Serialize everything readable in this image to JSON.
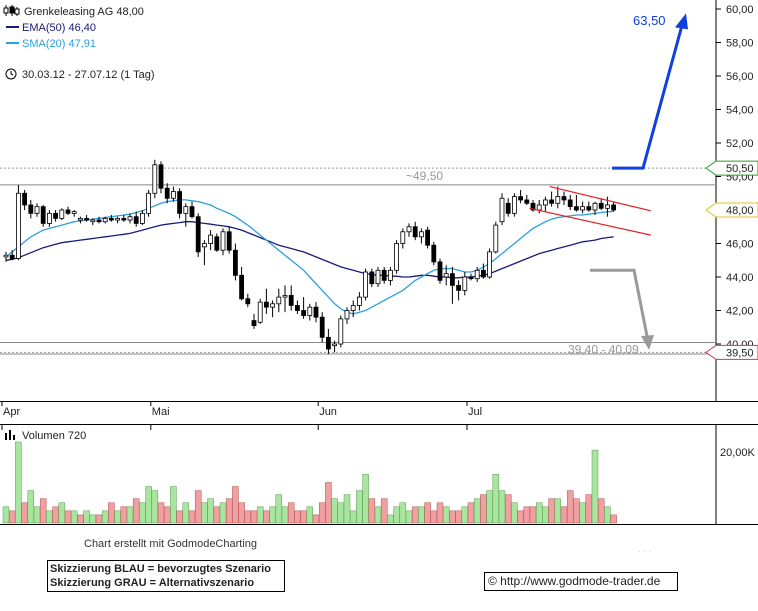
{
  "header": {
    "instrument": "Grenkeleasing AG 48,00",
    "ema_label": "EMA(50) 46,40",
    "sma_label": "SMA(20) 47,91",
    "period": "30.03.12 - 27.07.12 (1 Tag)"
  },
  "colors": {
    "candle_up": "#ffffff",
    "candle_down": "#000000",
    "ema": "#1a1a7a",
    "sma": "#2a9fe0",
    "channel": "#e02020",
    "scenario_blue": "#1040e0",
    "scenario_gray": "#9a9a9a",
    "volume_up": "#a8e6a0",
    "volume_down": "#f0a0a0"
  },
  "chart_data": [
    {
      "type": "candlestick",
      "yaxis": {
        "min": 39.0,
        "max": 60.5,
        "ticks": [
          "60,00",
          "58,00",
          "56,00",
          "54,00",
          "52,00",
          "50,00",
          "48,00",
          "46,00",
          "44,00",
          "42,00",
          "40,00"
        ]
      },
      "xaxis": {
        "months": [
          "Apr",
          "Mai",
          "Jun",
          "Jul"
        ]
      },
      "candles": [
        [
          45.2,
          45.5,
          44.9,
          45.3
        ],
        [
          45.3,
          45.6,
          45.0,
          45.1
        ],
        [
          45.1,
          49.5,
          45.0,
          49.0
        ],
        [
          49.0,
          49.2,
          48.0,
          48.3
        ],
        [
          48.3,
          48.6,
          47.5,
          47.8
        ],
        [
          47.8,
          48.4,
          47.6,
          48.2
        ],
        [
          48.2,
          48.3,
          47.0,
          47.2
        ],
        [
          47.2,
          48.0,
          47.0,
          47.8
        ],
        [
          47.8,
          48.0,
          47.3,
          47.5
        ],
        [
          47.5,
          48.1,
          47.4,
          48.0
        ],
        [
          48.0,
          48.2,
          47.7,
          47.8
        ],
        [
          47.8,
          48.0,
          47.6,
          47.9
        ],
        [
          47.4,
          47.6,
          47.2,
          47.5
        ],
        [
          47.5,
          47.7,
          47.3,
          47.4
        ],
        [
          47.3,
          47.5,
          47.1,
          47.4
        ],
        [
          47.4,
          47.6,
          47.2,
          47.3
        ],
        [
          47.3,
          47.6,
          47.2,
          47.5
        ],
        [
          47.5,
          47.7,
          47.3,
          47.4
        ],
        [
          47.4,
          47.6,
          47.2,
          47.5
        ],
        [
          47.5,
          47.7,
          47.3,
          47.4
        ],
        [
          47.4,
          47.8,
          47.2,
          47.6
        ],
        [
          47.6,
          47.9,
          47.0,
          47.2
        ],
        [
          47.2,
          48.0,
          47.1,
          47.8
        ],
        [
          47.8,
          49.2,
          47.6,
          49.0
        ],
        [
          49.0,
          51.0,
          48.7,
          50.7
        ],
        [
          50.7,
          50.9,
          49.0,
          49.3
        ],
        [
          49.3,
          49.6,
          48.4,
          48.7
        ],
        [
          48.7,
          49.4,
          48.5,
          49.1
        ],
        [
          49.1,
          49.3,
          47.5,
          47.8
        ],
        [
          47.8,
          48.4,
          47.0,
          48.2
        ],
        [
          48.2,
          48.5,
          47.5,
          47.6
        ],
        [
          47.6,
          47.8,
          45.2,
          45.5
        ],
        [
          45.8,
          46.2,
          44.7,
          46.0
        ],
        [
          46.0,
          46.8,
          45.6,
          46.5
        ],
        [
          46.4,
          46.6,
          45.5,
          45.6
        ],
        [
          45.6,
          46.9,
          45.3,
          46.7
        ],
        [
          46.7,
          47.0,
          45.4,
          45.6
        ],
        [
          45.6,
          46.0,
          43.8,
          44.1
        ],
        [
          44.1,
          44.6,
          42.6,
          42.7
        ],
        [
          42.7,
          43.0,
          42.2,
          42.4
        ],
        [
          41.4,
          41.8,
          40.9,
          41.1
        ],
        [
          41.3,
          42.7,
          41.2,
          42.5
        ],
        [
          42.5,
          43.3,
          41.8,
          42.2
        ],
        [
          42.2,
          42.6,
          41.6,
          42.4
        ],
        [
          42.4,
          43.3,
          41.9,
          42.8
        ],
        [
          42.8,
          43.5,
          41.9,
          42.9
        ],
        [
          42.9,
          43.5,
          42.0,
          42.3
        ],
        [
          42.3,
          42.6,
          41.8,
          42.0
        ],
        [
          42.0,
          42.8,
          41.5,
          41.7
        ],
        [
          41.7,
          42.4,
          41.4,
          42.2
        ],
        [
          42.2,
          42.5,
          41.3,
          41.6
        ],
        [
          41.6,
          41.9,
          40.1,
          40.4
        ],
        [
          40.4,
          40.9,
          39.4,
          39.7
        ],
        [
          39.9,
          40.2,
          39.5,
          40.0
        ],
        [
          40.0,
          41.7,
          39.8,
          41.5
        ],
        [
          41.5,
          42.2,
          41.2,
          42.0
        ],
        [
          42.0,
          42.6,
          41.6,
          42.3
        ],
        [
          42.3,
          43.1,
          42.0,
          42.8
        ],
        [
          42.8,
          44.5,
          42.6,
          44.3
        ],
        [
          44.3,
          44.5,
          43.4,
          43.6
        ],
        [
          43.6,
          44.6,
          43.4,
          44.4
        ],
        [
          44.4,
          44.6,
          43.6,
          43.8
        ],
        [
          43.8,
          44.6,
          43.5,
          44.4
        ],
        [
          44.4,
          46.2,
          44.2,
          46.0
        ],
        [
          46.0,
          46.9,
          45.7,
          46.7
        ],
        [
          46.7,
          47.2,
          46.4,
          47.0
        ],
        [
          47.0,
          47.3,
          46.2,
          46.4
        ],
        [
          46.4,
          46.9,
          46.0,
          46.7
        ],
        [
          46.8,
          47.0,
          45.7,
          45.9
        ],
        [
          45.9,
          46.1,
          44.7,
          44.9
        ],
        [
          44.9,
          45.1,
          43.6,
          43.8
        ],
        [
          44.0,
          44.7,
          43.5,
          44.2
        ],
        [
          44.2,
          44.6,
          42.4,
          43.5
        ],
        [
          43.5,
          43.8,
          42.6,
          43.2
        ],
        [
          43.2,
          44.3,
          42.9,
          44.0
        ],
        [
          44.0,
          44.2,
          43.8,
          43.9
        ],
        [
          43.9,
          44.6,
          43.7,
          44.4
        ],
        [
          44.4,
          44.8,
          43.9,
          44.0
        ],
        [
          44.0,
          45.7,
          43.9,
          45.5
        ],
        [
          45.5,
          47.3,
          45.4,
          47.1
        ],
        [
          47.3,
          49.0,
          47.1,
          48.7
        ],
        [
          48.4,
          48.7,
          47.6,
          47.8
        ],
        [
          47.8,
          49.0,
          47.6,
          48.8
        ],
        [
          48.8,
          49.2,
          48.4,
          48.6
        ],
        [
          48.6,
          48.9,
          48.3,
          48.4
        ],
        [
          48.4,
          48.6,
          47.9,
          48.0
        ],
        [
          48.0,
          48.6,
          47.8,
          48.3
        ],
        [
          48.3,
          48.8,
          47.9,
          48.6
        ],
        [
          48.6,
          49.1,
          48.2,
          48.4
        ],
        [
          48.4,
          49.4,
          48.1,
          48.8
        ],
        [
          48.8,
          49.1,
          48.3,
          48.6
        ],
        [
          48.6,
          48.9,
          48.0,
          48.2
        ],
        [
          48.2,
          48.9,
          47.9,
          48.0
        ],
        [
          48.0,
          48.5,
          47.8,
          48.2
        ],
        [
          48.2,
          48.5,
          47.9,
          48.0
        ],
        [
          48.0,
          48.5,
          47.7,
          48.4
        ],
        [
          48.4,
          48.7,
          48.0,
          48.1
        ],
        [
          48.1,
          48.8,
          47.6,
          48.3
        ],
        [
          48.3,
          48.5,
          47.9,
          48.0
        ]
      ],
      "ema50": [
        45.0,
        45.05,
        45.15,
        45.3,
        45.45,
        45.6,
        45.75,
        45.85,
        45.95,
        46.05,
        46.1,
        46.15,
        46.2,
        46.25,
        46.3,
        46.35,
        46.4,
        46.45,
        46.5,
        46.55,
        46.6,
        46.7,
        46.8,
        46.9,
        47.0,
        47.1,
        47.15,
        47.2,
        47.25,
        47.3,
        47.3,
        47.25,
        47.2,
        47.15,
        47.1,
        47.05,
        47.0,
        46.9,
        46.8,
        46.65,
        46.5,
        46.35,
        46.2,
        46.05,
        45.9,
        45.8,
        45.7,
        45.6,
        45.5,
        45.35,
        45.2,
        45.05,
        44.9,
        44.75,
        44.6,
        44.5,
        44.4,
        44.3,
        44.2,
        44.15,
        44.1,
        44.1,
        44.05,
        44.05,
        44.0,
        44.0,
        44.05,
        44.1,
        44.1,
        44.05,
        44.0,
        44.0,
        43.95,
        43.95,
        44.0,
        44.0,
        44.05,
        44.1,
        44.2,
        44.35,
        44.5,
        44.65,
        44.8,
        44.95,
        45.1,
        45.25,
        45.4,
        45.5,
        45.6,
        45.7,
        45.8,
        45.9,
        46.0,
        46.1,
        46.15,
        46.2,
        46.3,
        46.35,
        46.4
      ],
      "sma20": [
        45.2,
        45.5,
        45.8,
        46.1,
        46.4,
        46.6,
        46.8,
        46.9,
        47.0,
        47.1,
        47.2,
        47.3,
        47.35,
        47.4,
        47.45,
        47.5,
        47.55,
        47.6,
        47.65,
        47.7,
        47.75,
        47.85,
        47.95,
        48.1,
        48.25,
        48.4,
        48.5,
        48.55,
        48.6,
        48.6,
        48.55,
        48.5,
        48.4,
        48.3,
        48.1,
        47.95,
        47.8,
        47.6,
        47.35,
        47.1,
        46.8,
        46.5,
        46.2,
        45.9,
        45.6,
        45.3,
        45.0,
        44.7,
        44.4,
        44.0,
        43.6,
        43.2,
        42.8,
        42.4,
        42.1,
        41.9,
        41.8,
        41.9,
        42.0,
        42.2,
        42.4,
        42.6,
        42.8,
        43.0,
        43.2,
        43.5,
        43.8,
        44.0,
        44.2,
        44.4,
        44.5,
        44.5,
        44.5,
        44.4,
        44.3,
        44.3,
        44.4,
        44.6,
        44.8,
        45.1,
        45.4,
        45.7,
        46.0,
        46.3,
        46.6,
        46.9,
        47.1,
        47.3,
        47.45,
        47.55,
        47.6,
        47.65,
        47.7,
        47.7,
        47.75,
        47.8,
        47.85,
        47.9,
        47.91
      ],
      "levels": [
        {
          "value": 50.5,
          "label": "50,50",
          "style": "dotted"
        },
        {
          "value": 49.5,
          "label": "~49,50",
          "style": "solid"
        },
        {
          "value": 40.09,
          "style": "solid"
        },
        {
          "value": 39.4,
          "label": "39,40 - 40,09",
          "style": "solid"
        },
        {
          "value": 39.5,
          "label": "39,50",
          "style": "dotted"
        }
      ],
      "price_tag": {
        "value": 48.0,
        "label": "48,00"
      },
      "channel": {
        "upper": [
          [
            0.0,
            49.4
          ],
          [
            1.0,
            47.95
          ]
        ],
        "lower": [
          [
            0.0,
            48.1
          ],
          [
            1.0,
            46.5
          ]
        ]
      },
      "scenario_blue": {
        "label": "63,50",
        "path": [
          [
            50.5
          ],
          [
            50.5
          ],
          [
            59.5
          ]
        ]
      },
      "scenario_gray": {
        "path": [
          [
            44.4
          ],
          [
            44.4
          ],
          [
            40.0
          ]
        ]
      }
    },
    {
      "type": "bar",
      "title": "Volumen 720",
      "ytick": "20,00K",
      "volumes": [
        4,
        3,
        20,
        5,
        8,
        4,
        6,
        3,
        4,
        5,
        3,
        3,
        2,
        3,
        2,
        2,
        3,
        5,
        3,
        4,
        4,
        6,
        5,
        9,
        8,
        5,
        4,
        9,
        3,
        5,
        3,
        8,
        5,
        6,
        4,
        5,
        6,
        9,
        5,
        3,
        3,
        4,
        3,
        4,
        7,
        4,
        5,
        3,
        3,
        4,
        2,
        5,
        10,
        6,
        5,
        7,
        3,
        8,
        12,
        6,
        4,
        6,
        2,
        4,
        5,
        3,
        4,
        4,
        5,
        3,
        5,
        4,
        3,
        3,
        4,
        5,
        6,
        7,
        8,
        12,
        8,
        7,
        5,
        3,
        4,
        4,
        5,
        4,
        6,
        6,
        4,
        8,
        6,
        5,
        7,
        18,
        6,
        4,
        2
      ],
      "up": [
        1,
        0,
        1,
        0,
        1,
        1,
        0,
        1,
        0,
        1,
        0,
        1,
        0,
        1,
        1,
        0,
        1,
        0,
        1,
        0,
        1,
        0,
        1,
        1,
        1,
        0,
        0,
        1,
        0,
        1,
        0,
        0,
        1,
        1,
        0,
        1,
        0,
        0,
        0,
        0,
        0,
        1,
        0,
        1,
        1,
        1,
        0,
        0,
        0,
        1,
        0,
        0,
        0,
        1,
        1,
        1,
        1,
        1,
        1,
        0,
        1,
        0,
        1,
        1,
        1,
        1,
        0,
        1,
        0,
        0,
        0,
        1,
        0,
        0,
        1,
        0,
        1,
        0,
        1,
        1,
        1,
        0,
        1,
        0,
        0,
        0,
        1,
        1,
        0,
        1,
        0,
        0,
        0,
        1,
        0,
        1,
        0,
        1,
        0
      ]
    }
  ],
  "footer": {
    "credit": "Chart erstellt mit GodmodeCharting",
    "scenario_blue": "Skizzierung BLAU = bevorzugtes Szenario",
    "scenario_gray": "Skizzierung GRAU = Alternativszenario",
    "copyright": "© http://www.godmode-trader.de"
  }
}
